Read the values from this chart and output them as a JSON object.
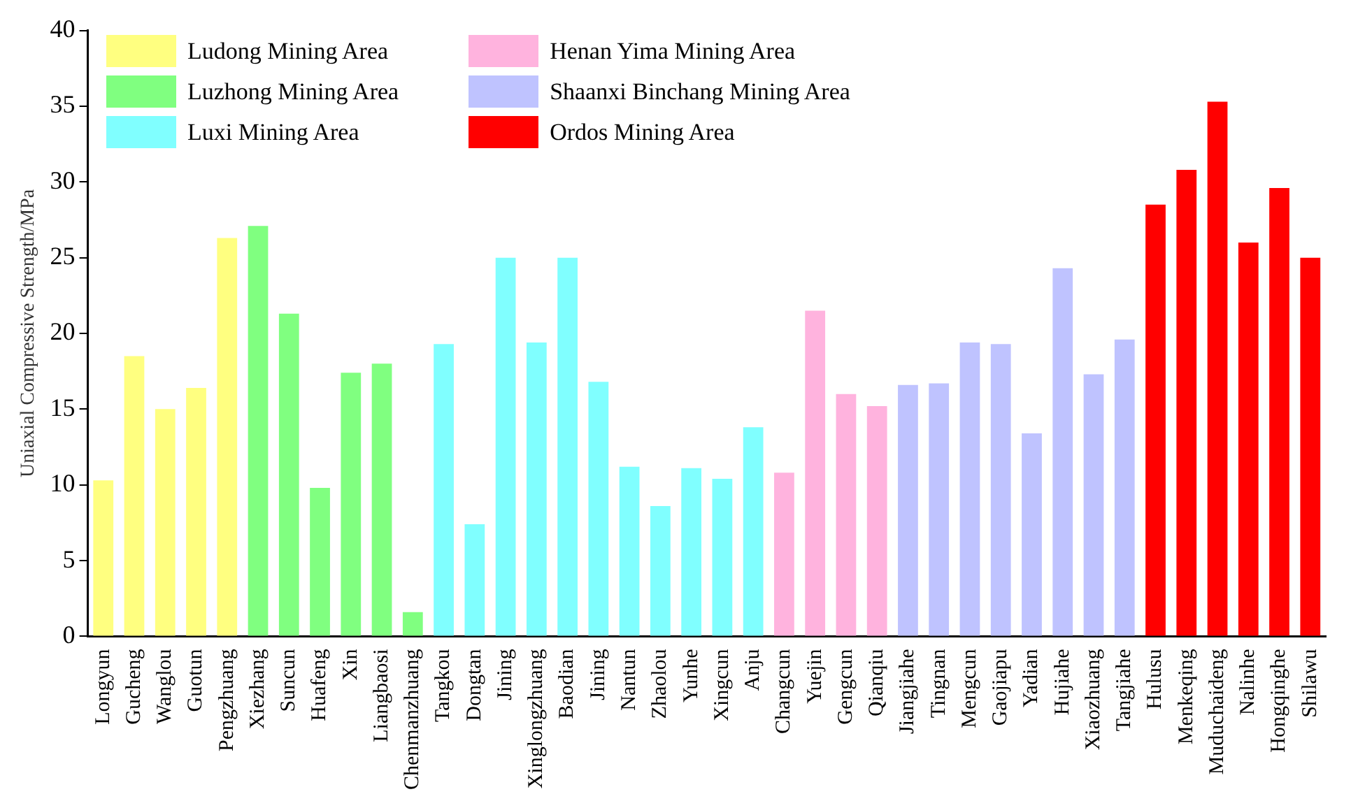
{
  "chart_data": {
    "type": "bar",
    "ylabel": "Uniaxial Compressive Strength/MPa",
    "categories": [
      "Longyun",
      "Gucheng",
      "Wanglou",
      "Guotun",
      "Pengzhuang",
      "Xiezhang",
      "Suncun",
      "Huafeng",
      "Xin",
      "Liangbaosi",
      "Chenmanzhuang",
      "Tangkou",
      "Dongtan",
      "Jining",
      "Xinglongzhuang",
      "Baodian",
      "Jining",
      "Nantun",
      "Zhaolou",
      "Yunhe",
      "Xingcun",
      "Anju",
      "Changcun",
      "Yuejin",
      "Gengcun",
      "Qianqiu",
      "Jiangjiahe",
      "Tingnan",
      "Mengcun",
      "Gaojiapu",
      "Yadian",
      "Hujiahe",
      "Xiaozhuang",
      "Tangjiahe",
      "Hulusu",
      "Menkeqing",
      "Muduchaideng",
      "Nalinhe",
      "Hongqinghe",
      "Shilawu"
    ],
    "series": [
      {
        "name": "Ludong Mining Area",
        "color": "#ffff80",
        "values": [
          10.3,
          18.5,
          15.0,
          16.4,
          26.3,
          null,
          null,
          null,
          null,
          null,
          null,
          null,
          null,
          null,
          null,
          null,
          null,
          null,
          null,
          null,
          null,
          null,
          null,
          null,
          null,
          null,
          null,
          null,
          null,
          null,
          null,
          null,
          null,
          null,
          null,
          null,
          null,
          null,
          null,
          null
        ]
      },
      {
        "name": "Luzhong Mining Area",
        "color": "#80ff80",
        "values": [
          null,
          null,
          null,
          null,
          null,
          27.1,
          21.3,
          9.8,
          17.4,
          18.0,
          1.6,
          null,
          null,
          null,
          null,
          null,
          null,
          null,
          null,
          null,
          null,
          null,
          null,
          null,
          null,
          null,
          null,
          null,
          null,
          null,
          null,
          null,
          null,
          null,
          null,
          null,
          null,
          null,
          null,
          null
        ]
      },
      {
        "name": "Luxi Mining Area",
        "color": "#80ffff",
        "values": [
          null,
          null,
          null,
          null,
          null,
          null,
          null,
          null,
          null,
          null,
          null,
          19.3,
          7.4,
          25.0,
          19.4,
          25.0,
          16.8,
          11.2,
          8.6,
          11.1,
          10.4,
          13.8,
          null,
          null,
          null,
          null,
          null,
          null,
          null,
          null,
          null,
          null,
          null,
          null,
          null,
          null,
          null,
          null,
          null,
          null
        ]
      },
      {
        "name": "Henan Yima Mining Area",
        "color": "#ffb3de",
        "values": [
          null,
          null,
          null,
          null,
          null,
          null,
          null,
          null,
          null,
          null,
          null,
          null,
          null,
          null,
          null,
          null,
          null,
          null,
          null,
          null,
          null,
          null,
          10.8,
          21.5,
          16.0,
          15.2,
          null,
          null,
          null,
          null,
          null,
          null,
          null,
          null,
          null,
          null,
          null,
          null,
          null,
          null
        ]
      },
      {
        "name": "Shaanxi Binchang Mining Area",
        "color": "#bfc3ff",
        "values": [
          null,
          null,
          null,
          null,
          null,
          null,
          null,
          null,
          null,
          null,
          null,
          null,
          null,
          null,
          null,
          null,
          null,
          null,
          null,
          null,
          null,
          null,
          null,
          null,
          null,
          null,
          16.6,
          16.7,
          19.4,
          19.3,
          13.4,
          24.3,
          17.3,
          19.6,
          null,
          null,
          null,
          null,
          null,
          null
        ]
      },
      {
        "name": "Ordos Mining Area",
        "color": "#ff0000",
        "values": [
          null,
          null,
          null,
          null,
          null,
          null,
          null,
          null,
          null,
          null,
          null,
          null,
          null,
          null,
          null,
          null,
          null,
          null,
          null,
          null,
          null,
          null,
          null,
          null,
          null,
          null,
          null,
          null,
          null,
          null,
          null,
          null,
          null,
          null,
          28.5,
          30.8,
          35.3,
          26.0,
          29.6,
          25.0
        ]
      }
    ],
    "ylim": [
      0,
      40
    ],
    "yticks": [
      0,
      5,
      10,
      15,
      20,
      25,
      30,
      35,
      40
    ],
    "grid": false,
    "legend": "top left"
  }
}
